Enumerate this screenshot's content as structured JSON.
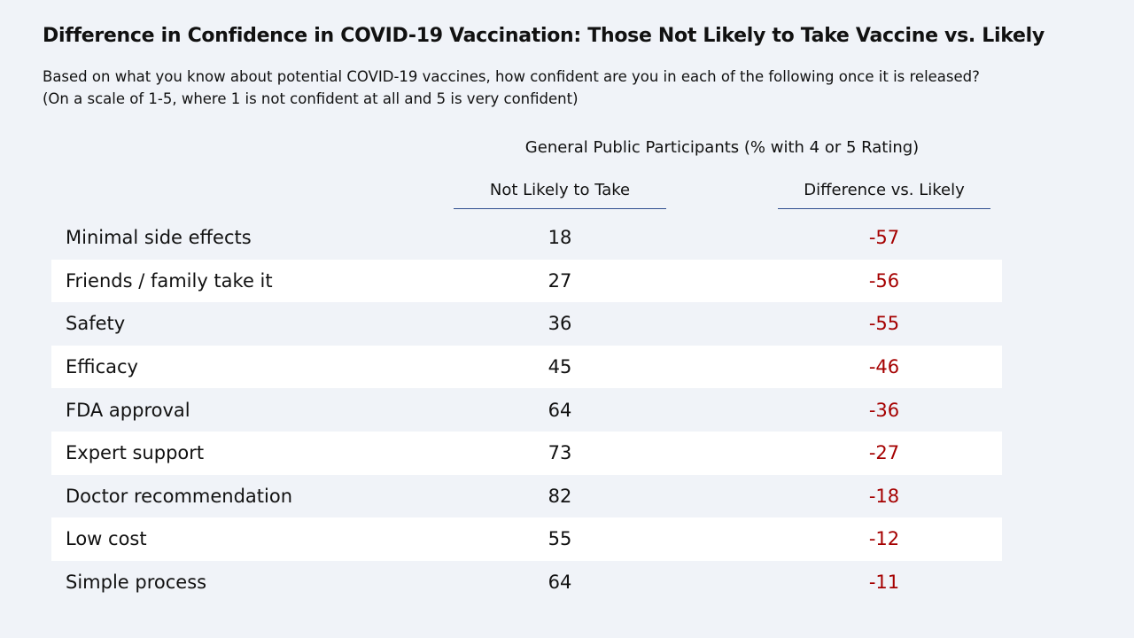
{
  "title": "Difference in Confidence in COVID-19 Vaccination: Those Not Likely to Take Vaccine vs. Likely",
  "subtitle": {
    "line1": "Based on what you know about potential COVID-19 vaccines, how confident are you in each of the following once it is released?",
    "line2": "(On a scale of 1-5, where 1 is not confident at all and 5 is very confident)"
  },
  "table": {
    "group_header": "General Public Participants (% with 4 or 5 Rating)",
    "columns": [
      "Not Likely to Take",
      "Difference vs. Likely"
    ],
    "accent_negative": "#a50000",
    "rows": [
      {
        "label": "Minimal side effects",
        "not_likely": "18",
        "difference": "-57"
      },
      {
        "label": "Friends / family take it",
        "not_likely": "27",
        "difference": "-56"
      },
      {
        "label": "Safety",
        "not_likely": "36",
        "difference": "-55"
      },
      {
        "label": "Efficacy",
        "not_likely": "45",
        "difference": "-46"
      },
      {
        "label": "FDA approval",
        "not_likely": "64",
        "difference": "-36"
      },
      {
        "label": "Expert support",
        "not_likely": "73",
        "difference": "-27"
      },
      {
        "label": "Doctor recommendation",
        "not_likely": "82",
        "difference": "-18"
      },
      {
        "label": "Low cost",
        "not_likely": "55",
        "difference": "-12"
      },
      {
        "label": "Simple process",
        "not_likely": "64",
        "difference": "-11"
      }
    ]
  }
}
